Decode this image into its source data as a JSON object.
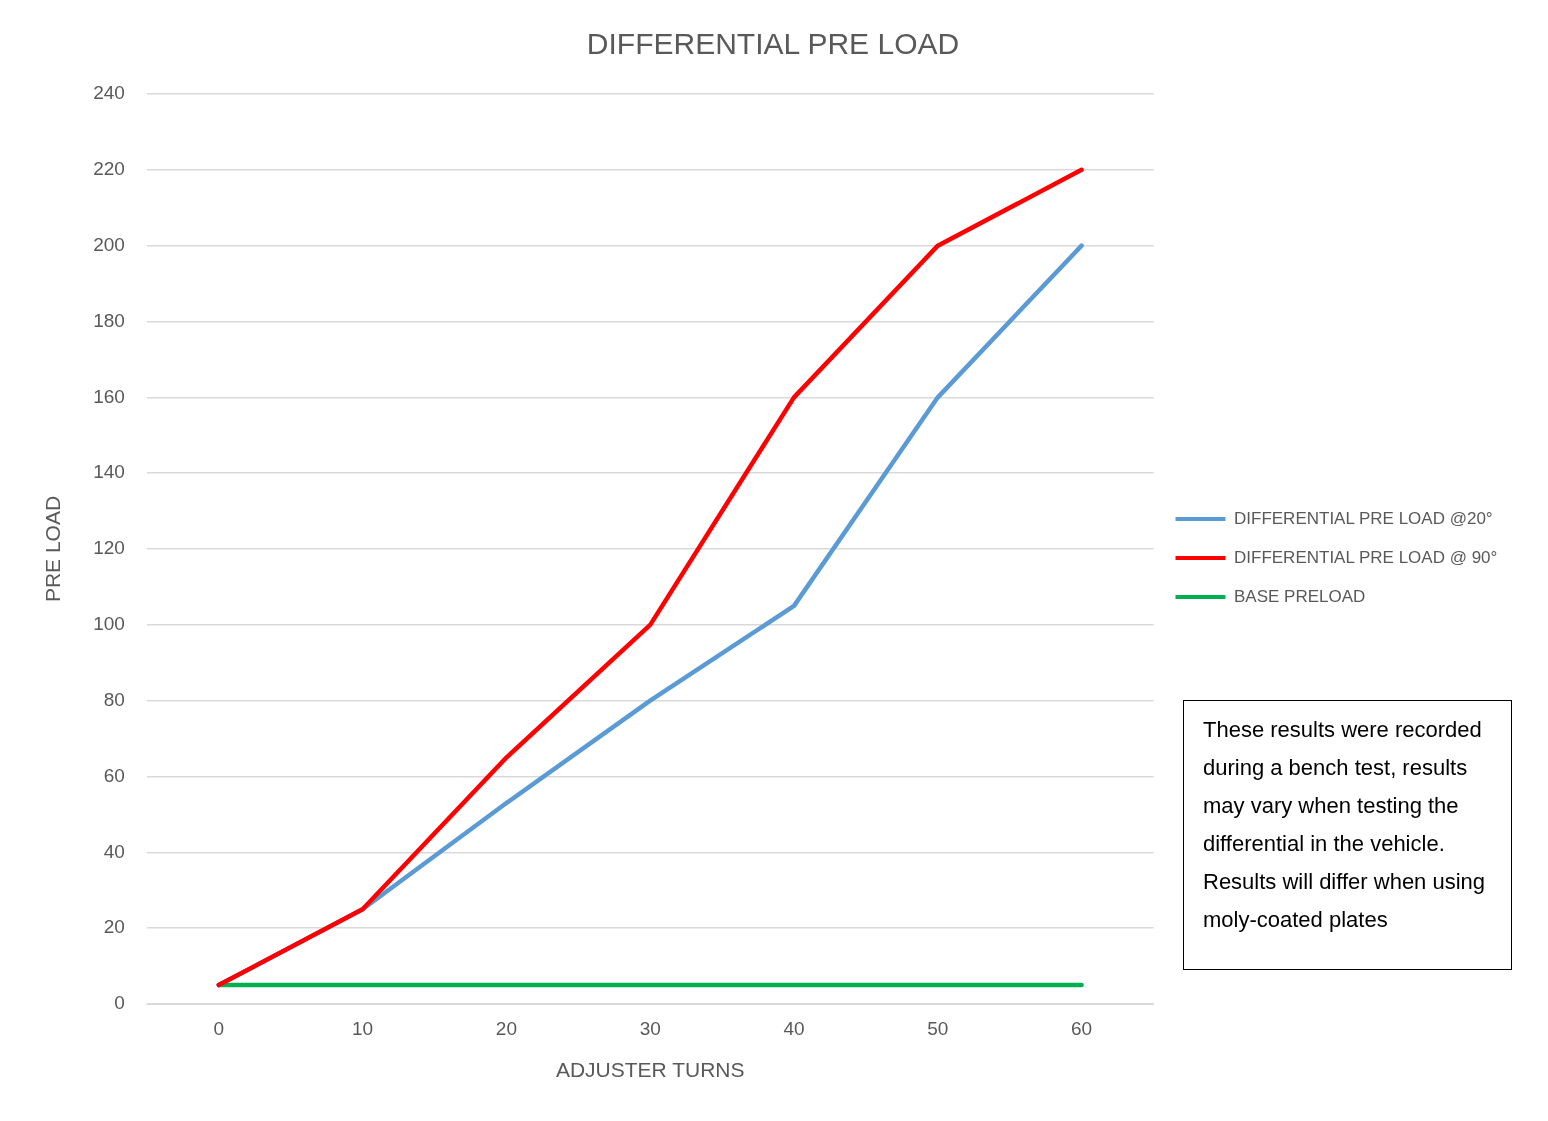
{
  "chart_data": {
    "type": "line",
    "title": "DIFFERENTIAL PRE LOAD",
    "xlabel": "ADJUSTER TURNS",
    "ylabel": "PRE LOAD",
    "categories": [
      "0",
      "10",
      "20",
      "30",
      "40",
      "50",
      "60"
    ],
    "series": [
      {
        "name": "DIFFERENTIAL PRE LOAD @20°",
        "color": "#5b9bd5",
        "values": [
          5,
          25,
          53,
          80,
          105,
          160,
          200
        ]
      },
      {
        "name": "DIFFERENTIAL PRE LOAD @ 90°",
        "color": "#ff0000",
        "values": [
          5,
          25,
          65,
          100,
          160,
          200,
          220
        ]
      },
      {
        "name": "BASE PRELOAD",
        "color": "#00b050",
        "values": [
          5,
          5,
          5,
          5,
          5,
          5,
          5
        ]
      }
    ],
    "ylim": [
      0,
      240
    ],
    "yticks": [
      0,
      20,
      40,
      60,
      80,
      100,
      120,
      140,
      160,
      180,
      200,
      220,
      240
    ],
    "grid": "y",
    "legend": "right",
    "marker": "none",
    "line_style": "solid",
    "annotations": [
      "These results were recorded during a bench test, results may vary when testing the differential in the vehicle. Results will differ when using moly-coated plates"
    ]
  }
}
